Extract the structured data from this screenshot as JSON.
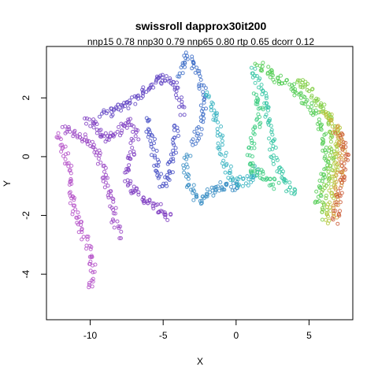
{
  "chart_data": {
    "type": "scatter",
    "title": "swissroll dapprox30it200",
    "subtitle": "nnp15 0.78 nnp30 0.79 nnp65 0.80 rtp 0.65 dcorr 0.12",
    "xlabel": "X",
    "ylabel": "Y",
    "xlim": [
      -13.0,
      8.0
    ],
    "ylim": [
      -5.55,
      3.75
    ],
    "xticks": [
      -10,
      -5,
      0,
      5
    ],
    "yticks": [
      -4,
      -2,
      0,
      2
    ],
    "grid": false,
    "marker": "open-circle",
    "color_scale": "rainbow along manifold (violet → blue → cyan → green → yellow → red)",
    "curves": [
      {
        "color": "#b450c8",
        "points": [
          [
            -12.3,
            0.7
          ],
          [
            -11.9,
            0.3
          ],
          [
            -11.5,
            -0.3
          ],
          [
            -11.3,
            -1.2
          ],
          [
            -11.0,
            -2.0
          ],
          [
            -10.5,
            -2.6
          ],
          [
            -10.0,
            -3.2
          ],
          [
            -9.8,
            -4.0
          ],
          [
            -10.0,
            -4.5
          ]
        ]
      },
      {
        "color": "#9a46c4",
        "points": [
          [
            -11.8,
            0.9
          ],
          [
            -11.0,
            0.8
          ],
          [
            -10.2,
            0.5
          ],
          [
            -9.5,
            0.1
          ],
          [
            -9.0,
            -0.6
          ],
          [
            -8.6,
            -1.4
          ],
          [
            -8.3,
            -2.2
          ],
          [
            -8.0,
            -2.8
          ]
        ]
      },
      {
        "color": "#8040c2",
        "points": [
          [
            -10.3,
            1.3
          ],
          [
            -9.5,
            1.0
          ],
          [
            -8.8,
            0.6
          ],
          [
            -8.0,
            0.9
          ],
          [
            -7.3,
            1.2
          ],
          [
            -6.9,
            0.7
          ],
          [
            -7.2,
            0.1
          ],
          [
            -7.6,
            -0.4
          ],
          [
            -7.3,
            -1.0
          ],
          [
            -6.6,
            -1.3
          ],
          [
            -6.0,
            -1.6
          ],
          [
            -5.2,
            -1.8
          ],
          [
            -4.5,
            -2.1
          ]
        ]
      },
      {
        "color": "#6448c4",
        "points": [
          [
            -9.2,
            1.4
          ],
          [
            -8.4,
            1.6
          ],
          [
            -7.7,
            1.7
          ],
          [
            -6.9,
            2.0
          ],
          [
            -6.2,
            2.3
          ],
          [
            -5.5,
            2.6
          ],
          [
            -4.8,
            2.7
          ],
          [
            -4.2,
            2.5
          ],
          [
            -3.8,
            2.0
          ],
          [
            -3.6,
            1.4
          ]
        ]
      },
      {
        "color": "#4a52c6",
        "points": [
          [
            -6.2,
            1.3
          ],
          [
            -5.8,
            0.8
          ],
          [
            -5.6,
            0.2
          ],
          [
            -5.4,
            -0.5
          ],
          [
            -5.0,
            -1.0
          ],
          [
            -4.6,
            -0.6
          ],
          [
            -4.3,
            0.0
          ],
          [
            -4.1,
            0.6
          ],
          [
            -4.4,
            1.1
          ]
        ]
      },
      {
        "color": "#3e6ec8",
        "points": [
          [
            -4.0,
            2.8
          ],
          [
            -3.7,
            3.1
          ],
          [
            -3.3,
            3.4
          ],
          [
            -2.9,
            3.2
          ],
          [
            -2.5,
            2.7
          ],
          [
            -2.2,
            2.1
          ],
          [
            -2.3,
            1.4
          ],
          [
            -2.6,
            0.8
          ],
          [
            -3.0,
            0.3
          ]
        ]
      },
      {
        "color": "#3a8ec4",
        "points": [
          [
            -3.2,
            0.1
          ],
          [
            -3.4,
            -0.3
          ],
          [
            -3.3,
            -0.9
          ],
          [
            -2.9,
            -1.3
          ],
          [
            -2.5,
            -1.5
          ],
          [
            -2.0,
            -1.3
          ],
          [
            -1.5,
            -1.1
          ],
          [
            -0.9,
            -1.0
          ],
          [
            -0.3,
            -1.0
          ],
          [
            0.3,
            -1.0
          ]
        ]
      },
      {
        "color": "#34b2c0",
        "points": [
          [
            -2.0,
            2.2
          ],
          [
            -1.6,
            1.6
          ],
          [
            -1.2,
            0.9
          ],
          [
            -1.0,
            0.3
          ],
          [
            -0.6,
            -0.4
          ],
          [
            -0.1,
            -0.8
          ],
          [
            0.6,
            -0.9
          ],
          [
            1.2,
            -0.7
          ],
          [
            1.5,
            -0.3
          ]
        ]
      },
      {
        "color": "#36c6a4",
        "points": [
          [
            1.1,
            3.0
          ],
          [
            1.5,
            2.6
          ],
          [
            1.9,
            2.1
          ],
          [
            2.1,
            1.5
          ],
          [
            2.3,
            0.9
          ],
          [
            2.5,
            0.3
          ],
          [
            2.7,
            -0.2
          ],
          [
            3.0,
            -0.6
          ],
          [
            3.4,
            -0.9
          ],
          [
            3.8,
            -1.1
          ],
          [
            4.2,
            -1.3
          ]
        ]
      },
      {
        "color": "#3ccc80",
        "points": [
          [
            1.2,
            2.2
          ],
          [
            1.7,
            1.6
          ],
          [
            1.4,
            1.0
          ],
          [
            1.1,
            0.4
          ],
          [
            0.9,
            -0.3
          ],
          [
            1.6,
            -0.6
          ],
          [
            2.2,
            -0.8
          ],
          [
            2.8,
            -1.0
          ]
        ]
      },
      {
        "color": "#52cc54",
        "points": [
          [
            1.5,
            3.1
          ],
          [
            2.3,
            2.9
          ],
          [
            3.0,
            2.6
          ],
          [
            3.7,
            2.4
          ],
          [
            4.3,
            2.1
          ],
          [
            4.9,
            1.8
          ],
          [
            5.4,
            1.5
          ],
          [
            5.8,
            1.1
          ],
          [
            6.1,
            0.6
          ],
          [
            6.2,
            0.0
          ],
          [
            6.0,
            -0.6
          ],
          [
            5.7,
            -1.2
          ],
          [
            5.5,
            -1.7
          ]
        ]
      },
      {
        "color": "#7ccc3e",
        "points": [
          [
            4.2,
            2.6
          ],
          [
            4.9,
            2.3
          ],
          [
            5.6,
            1.9
          ],
          [
            6.2,
            1.5
          ],
          [
            6.6,
            1.0
          ],
          [
            6.7,
            0.4
          ],
          [
            6.5,
            -0.3
          ],
          [
            6.2,
            -0.9
          ],
          [
            6.0,
            -1.5
          ],
          [
            6.1,
            -2.1
          ]
        ]
      },
      {
        "color": "#b4c83c",
        "points": [
          [
            5.9,
            1.6
          ],
          [
            6.4,
            1.3
          ],
          [
            6.9,
            0.9
          ],
          [
            7.0,
            0.3
          ],
          [
            6.9,
            -0.4
          ],
          [
            6.6,
            -1.1
          ],
          [
            6.4,
            -1.7
          ],
          [
            6.3,
            -2.3
          ]
        ]
      },
      {
        "color": "#d49c3a",
        "points": [
          [
            6.7,
            1.1
          ],
          [
            7.1,
            0.7
          ],
          [
            7.3,
            0.2
          ],
          [
            7.2,
            -0.4
          ],
          [
            7.0,
            -1.0
          ],
          [
            6.8,
            -1.6
          ],
          [
            6.7,
            -2.1
          ]
        ]
      },
      {
        "color": "#cc5e3a",
        "points": [
          [
            7.0,
            0.8
          ],
          [
            7.4,
            0.5
          ],
          [
            7.5,
            0.0
          ],
          [
            7.3,
            -0.6
          ],
          [
            7.1,
            -1.2
          ],
          [
            6.9,
            -1.7
          ],
          [
            6.8,
            -2.3
          ]
        ]
      }
    ]
  }
}
